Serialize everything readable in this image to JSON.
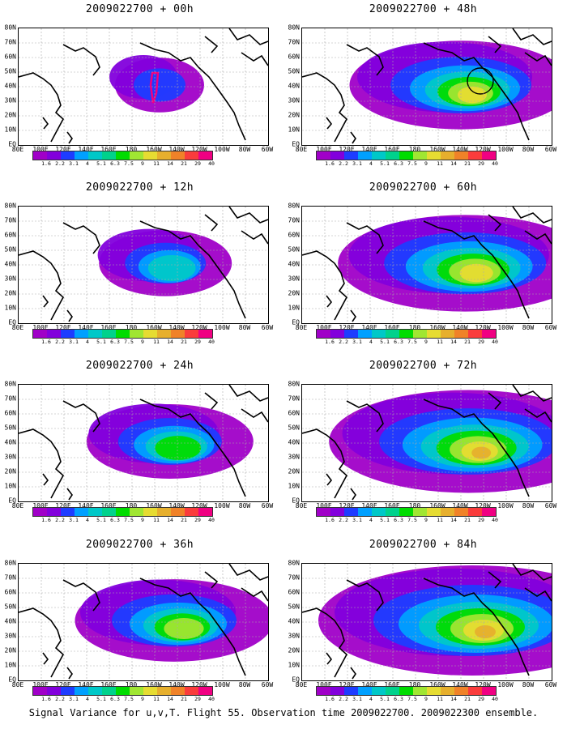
{
  "caption": "Signal Variance for u,v,T. Flight 55. Observation time 2009022700. 2009022300 ensemble.",
  "panels": [
    {
      "title": "2009022700 + 00h"
    },
    {
      "title": "2009022700 + 48h"
    },
    {
      "title": "2009022700 + 12h"
    },
    {
      "title": "2009022700 + 60h"
    },
    {
      "title": "2009022700 + 24h"
    },
    {
      "title": "2009022700 + 72h"
    },
    {
      "title": "2009022700 + 36h"
    },
    {
      "title": "2009022700 + 84h"
    }
  ],
  "lat_labels": [
    "80N",
    "70N",
    "60N",
    "50N",
    "40N",
    "30N",
    "20N",
    "10N",
    "EQ"
  ],
  "lon_labels": [
    "80E",
    "100E",
    "120E",
    "140E",
    "160E",
    "180",
    "160W",
    "140W",
    "120W",
    "100W",
    "80W",
    "60W"
  ],
  "colorbar": {
    "labels": [
      "1.6",
      "2.2",
      "3.1",
      "4",
      "5.1",
      "6.3",
      "7.5",
      "9",
      "11",
      "14",
      "21",
      "29",
      "40"
    ],
    "colors": [
      "#a000c8",
      "#8200dc",
      "#1e3cff",
      "#00a0ff",
      "#00c8c8",
      "#00d28c",
      "#00dc00",
      "#a0e632",
      "#e6dc32",
      "#e6af2d",
      "#f08228",
      "#fa3c3c",
      "#f00082"
    ]
  }
}
